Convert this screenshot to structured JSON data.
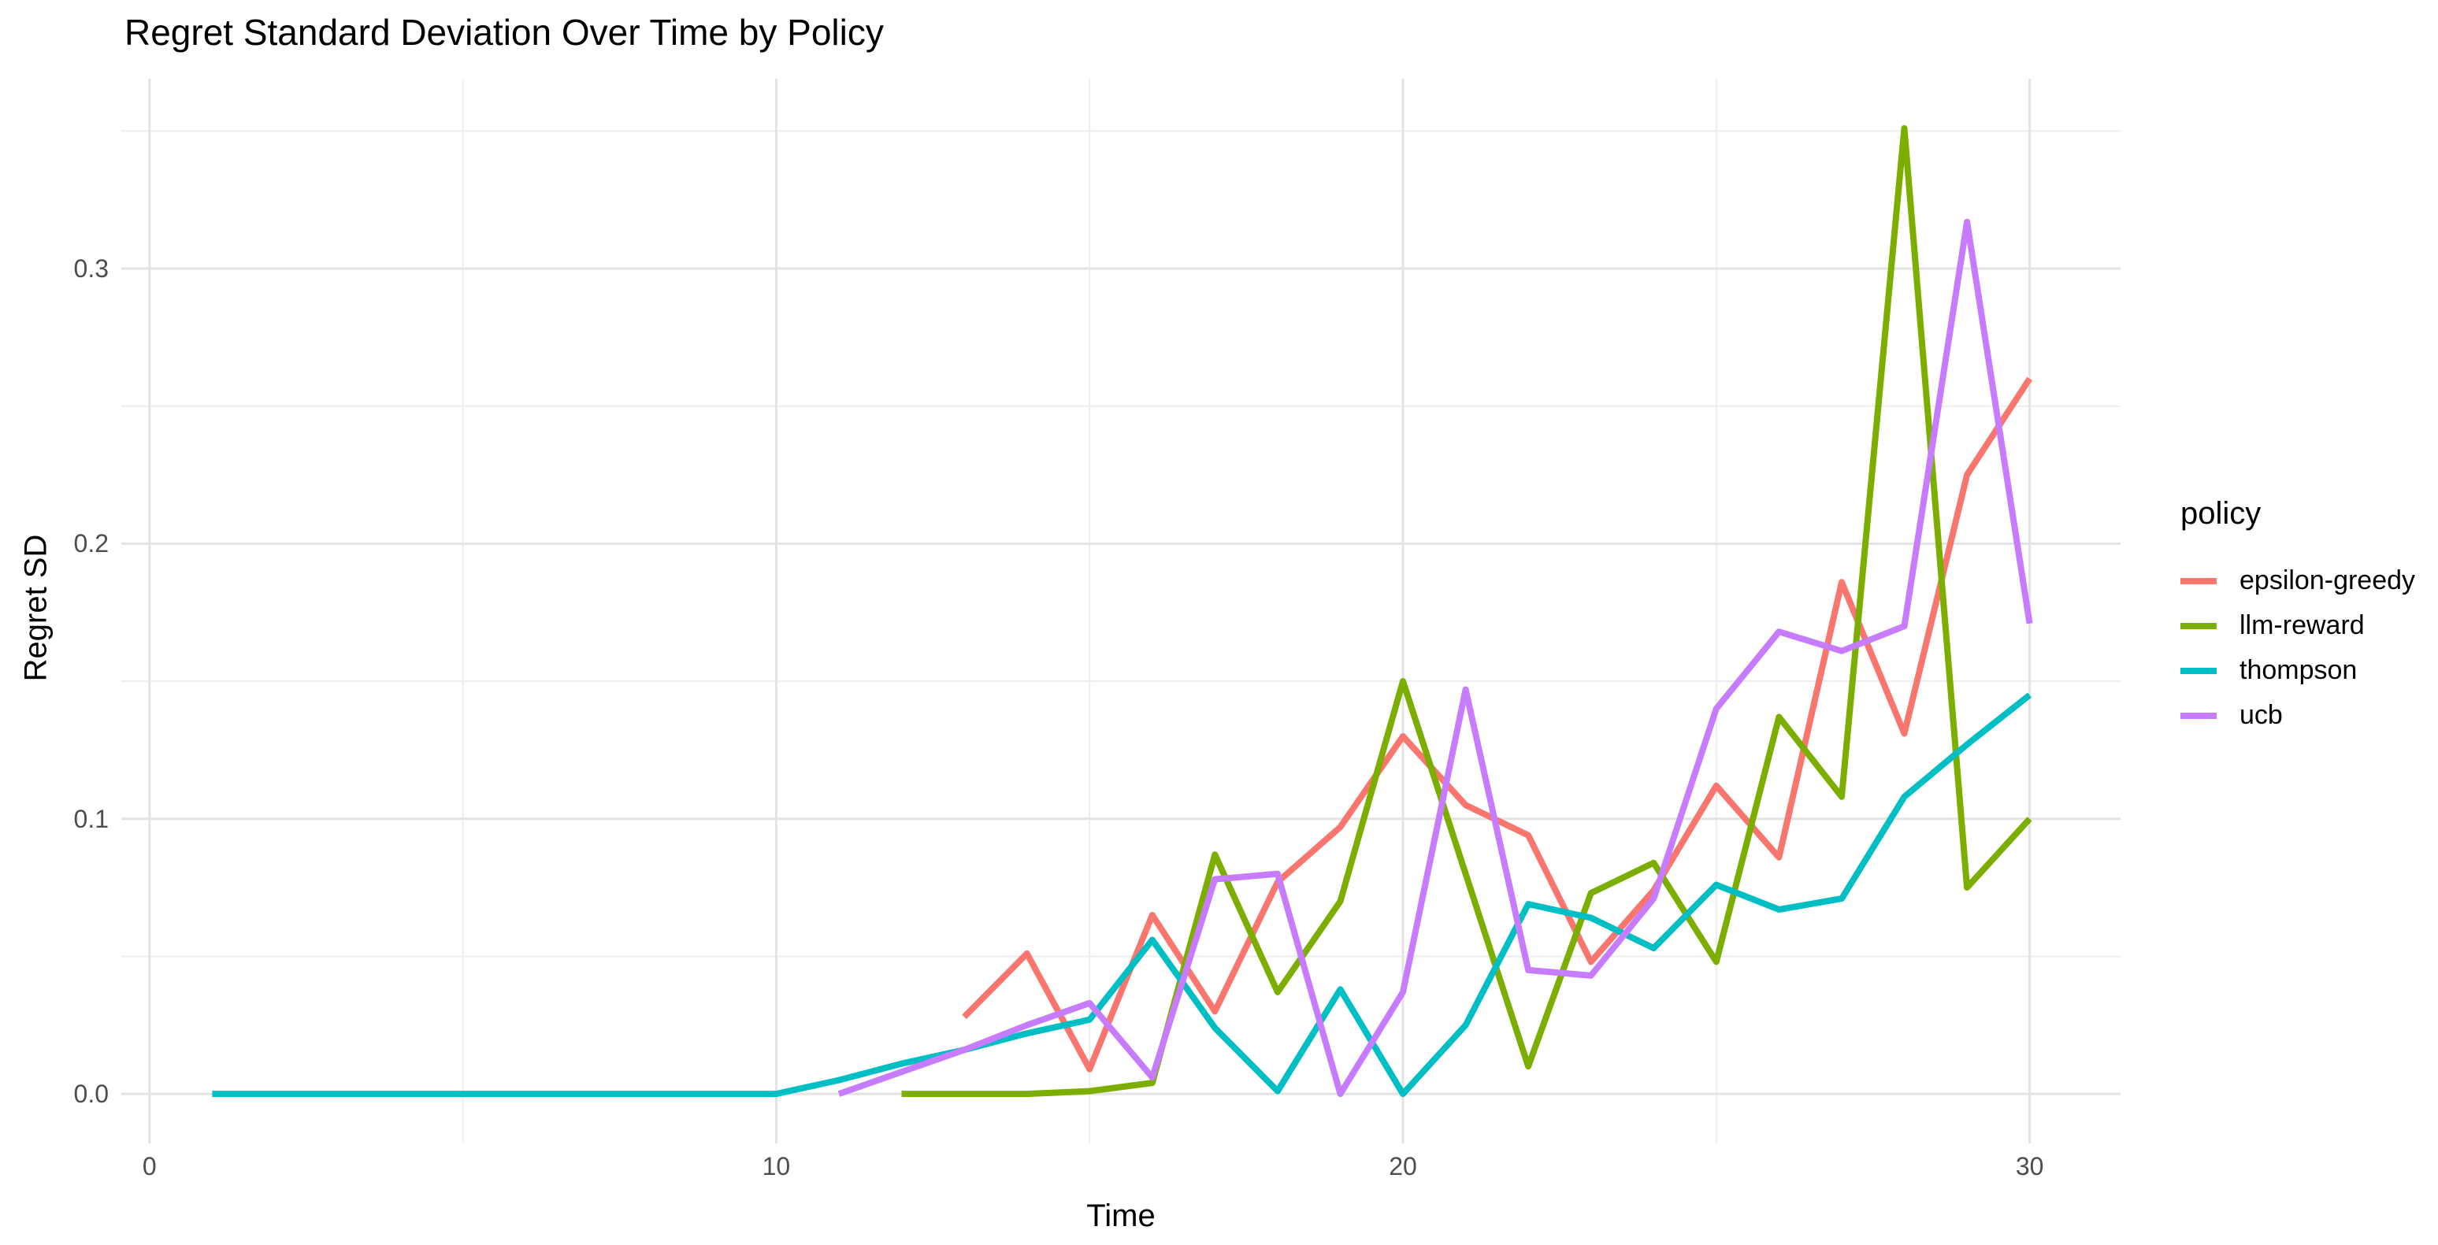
{
  "chart_data": {
    "type": "line",
    "title": "Regret Standard Deviation Over Time by Policy",
    "xlabel": "Time",
    "ylabel": "Regret SD",
    "grid": true,
    "legend": {
      "title": "policy",
      "position": "right"
    },
    "xlim": [
      -0.45,
      31.45
    ],
    "ylim": [
      -0.018,
      0.369
    ],
    "x_ticks": {
      "values": [
        0,
        10,
        20,
        30
      ],
      "labels": [
        "0",
        "10",
        "20",
        "30"
      ],
      "minor": [
        5,
        15,
        25
      ]
    },
    "y_ticks": {
      "values": [
        0,
        0.1,
        0.2,
        0.3
      ],
      "labels": [
        "0.0",
        "0.1",
        "0.2",
        "0.3"
      ],
      "minor": [
        0.05,
        0.15,
        0.25,
        0.35
      ]
    },
    "x": [
      1,
      2,
      3,
      4,
      5,
      6,
      7,
      8,
      9,
      10,
      11,
      12,
      13,
      14,
      15,
      16,
      17,
      18,
      19,
      20,
      21,
      22,
      23,
      24,
      25,
      26,
      27,
      28,
      29,
      30
    ],
    "series": [
      {
        "name": "epsilon-greedy",
        "color": "#F8766D",
        "values": [
          null,
          null,
          null,
          null,
          null,
          null,
          null,
          null,
          null,
          null,
          null,
          null,
          0.028,
          0.051,
          0.009,
          0.065,
          0.03,
          0.077,
          0.097,
          0.13,
          0.105,
          0.094,
          0.048,
          0.074,
          0.112,
          0.086,
          0.186,
          0.131,
          0.225,
          0.26
        ]
      },
      {
        "name": "llm-reward",
        "color": "#7CAE00",
        "values": [
          null,
          null,
          null,
          null,
          null,
          null,
          null,
          null,
          null,
          null,
          null,
          0,
          0,
          0,
          0.001,
          0.004,
          0.087,
          0.037,
          0.07,
          0.15,
          0.08,
          0.01,
          0.073,
          0.084,
          0.048,
          0.137,
          0.108,
          0.351,
          0.075,
          0.1
        ]
      },
      {
        "name": "thompson",
        "color": "#00BFC4",
        "values": [
          0,
          0,
          0,
          0,
          0,
          0,
          0,
          0,
          0,
          0,
          0.005,
          0.011,
          0.016,
          0.022,
          0.027,
          0.056,
          0.024,
          0.001,
          0.038,
          0,
          0.025,
          0.069,
          0.064,
          0.053,
          0.076,
          0.067,
          0.071,
          0.108,
          0.127,
          0.145
        ]
      },
      {
        "name": "ucb",
        "color": "#C77CFF",
        "values": [
          null,
          null,
          null,
          null,
          null,
          null,
          null,
          null,
          null,
          null,
          0,
          0.008,
          0.016,
          0.025,
          0.033,
          0.006,
          0.078,
          0.08,
          0,
          0.037,
          0.147,
          0.045,
          0.043,
          0.071,
          0.14,
          0.168,
          0.161,
          0.17,
          0.317,
          0.171
        ]
      }
    ],
    "style": {
      "major_grid_color": "#E3E3E3",
      "minor_grid_color": "#EDEDED",
      "line_width": 8
    }
  }
}
